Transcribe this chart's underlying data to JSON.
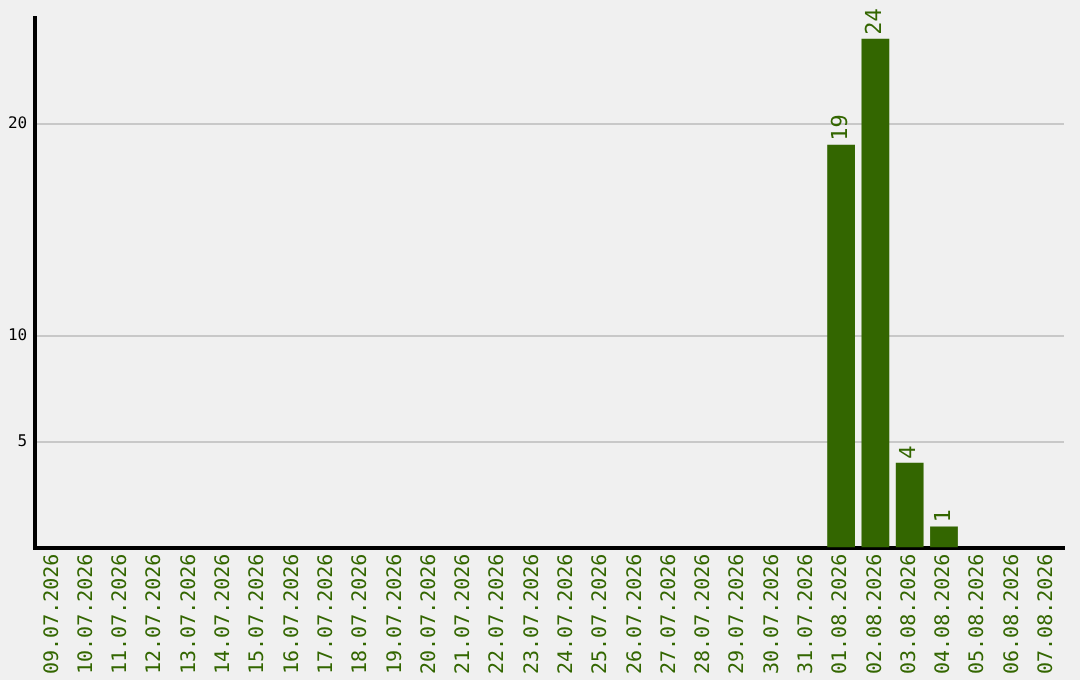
{
  "chart_data": {
    "type": "bar",
    "categories": [
      "09.07.2026",
      "10.07.2026",
      "11.07.2026",
      "12.07.2026",
      "13.07.2026",
      "14.07.2026",
      "15.07.2026",
      "16.07.2026",
      "17.07.2026",
      "18.07.2026",
      "19.07.2026",
      "20.07.2026",
      "21.07.2026",
      "22.07.2026",
      "23.07.2026",
      "24.07.2026",
      "25.07.2026",
      "26.07.2026",
      "27.07.2026",
      "28.07.2026",
      "29.07.2026",
      "30.07.2026",
      "31.07.2026",
      "01.08.2026",
      "02.08.2026",
      "03.08.2026",
      "04.08.2026",
      "05.08.2026",
      "06.08.2026",
      "07.08.2026"
    ],
    "values": [
      0,
      0,
      0,
      0,
      0,
      0,
      0,
      0,
      0,
      0,
      0,
      0,
      0,
      0,
      0,
      0,
      0,
      0,
      0,
      0,
      0,
      0,
      0,
      19,
      24,
      4,
      1,
      0,
      0,
      0
    ],
    "value_labels": [
      null,
      null,
      null,
      null,
      null,
      null,
      null,
      null,
      null,
      null,
      null,
      null,
      null,
      null,
      null,
      null,
      null,
      null,
      null,
      null,
      null,
      null,
      null,
      "19",
      "24",
      "4",
      "1",
      null,
      null,
      null
    ],
    "color": "#336600",
    "ylim": [
      0,
      25
    ],
    "yticks": [
      5,
      10,
      20
    ],
    "grid": "y",
    "legend": false
  }
}
